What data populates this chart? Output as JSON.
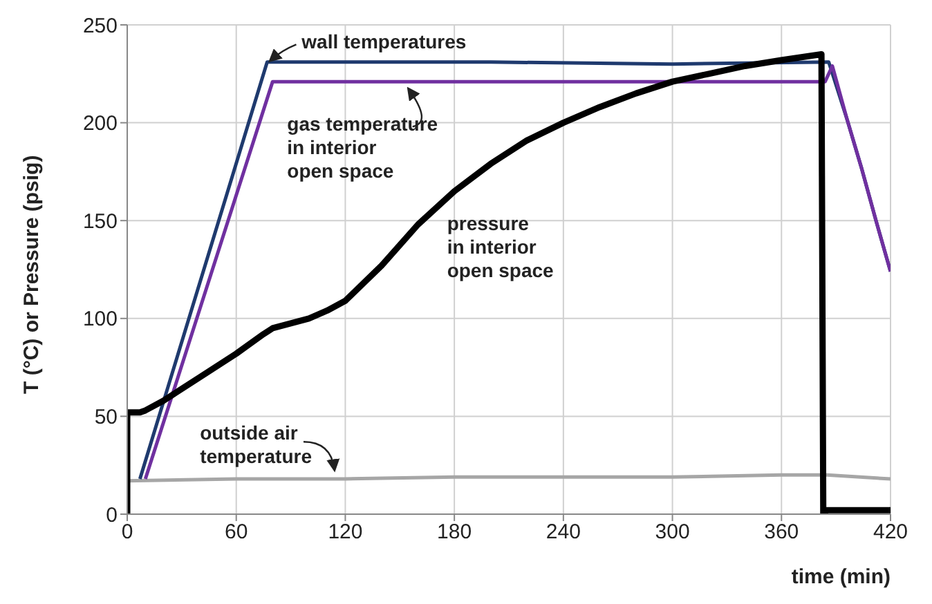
{
  "chart_data": {
    "type": "line",
    "xlabel": "time (min)",
    "ylabel": "T (°C) or Pressure (psig)",
    "xlim": [
      0,
      420
    ],
    "ylim": [
      0,
      250
    ],
    "xticks": [
      0,
      60,
      120,
      180,
      240,
      300,
      360,
      420
    ],
    "yticks": [
      0,
      50,
      100,
      150,
      200,
      250
    ],
    "grid": true,
    "legend": false,
    "marker": "none",
    "line_style": "solid",
    "series": [
      {
        "name": "wall temperatures",
        "color": "#1f3a6e",
        "x": [
          7,
          77,
          90,
          200,
          300,
          386,
          396,
          404,
          412,
          420
        ],
        "values": [
          18,
          231,
          231,
          231,
          230,
          231,
          202,
          177,
          150,
          124
        ]
      },
      {
        "name": "gas temperature in interior open space",
        "color": "#7030a0",
        "x": [
          10,
          80,
          90,
          200,
          300,
          384,
          388,
          396,
          404,
          412,
          420
        ],
        "values": [
          18,
          221,
          221,
          221,
          221,
          221,
          229,
          202,
          177,
          150,
          124
        ]
      },
      {
        "name": "pressure in interior open space",
        "color": "#000000",
        "x": [
          0,
          0,
          7,
          10,
          20,
          40,
          60,
          75,
          80,
          100,
          110,
          120,
          130,
          140,
          160,
          180,
          200,
          220,
          240,
          260,
          280,
          300,
          320,
          340,
          360,
          382,
          383,
          385,
          420
        ],
        "values": [
          0,
          52,
          52,
          53,
          58,
          70,
          82,
          92,
          95,
          100,
          104,
          109,
          118,
          127,
          148,
          165,
          179,
          191,
          200,
          208,
          215,
          221,
          225,
          229,
          232,
          235,
          0,
          2,
          2
        ]
      },
      {
        "name": "outside air temperature",
        "color": "#a6a6a6",
        "x": [
          0,
          60,
          120,
          180,
          240,
          300,
          360,
          385,
          420
        ],
        "values": [
          17,
          18,
          18,
          19,
          19,
          19,
          20,
          20,
          18
        ]
      }
    ]
  }
}
